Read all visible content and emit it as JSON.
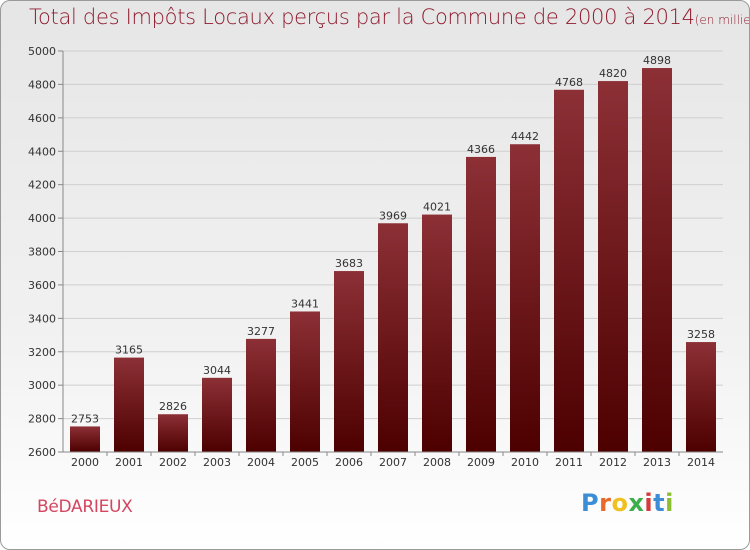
{
  "header": {
    "title": "Total des Impôts Locaux perçus par la Commune de 2000 à 2014",
    "unit": "(en milliers d'€)"
  },
  "commune": "BéDARIEUX",
  "logo": {
    "text": "Proxiti",
    "letters": [
      "P",
      "r",
      "o",
      "x",
      "i",
      "t",
      "i"
    ],
    "colors": [
      "#3b8ed6",
      "#e8692a",
      "#f0c020",
      "#3bb04a",
      "#d43a3a",
      "#3b8ed6",
      "#8bbf2f"
    ]
  },
  "colors": {
    "bar_top": "#8c3036",
    "bar_bottom": "#4d0000",
    "grid": "#cfcfcf",
    "axis": "#888888",
    "label": "#333333"
  },
  "chart_data": {
    "type": "bar",
    "title": "Total des Impôts Locaux perçus par la Commune de 2000 à 2014",
    "xlabel": "",
    "ylabel": "",
    "categories": [
      "2000",
      "2001",
      "2002",
      "2003",
      "2004",
      "2005",
      "2006",
      "2007",
      "2008",
      "2009",
      "2010",
      "2011",
      "2012",
      "2013",
      "2014"
    ],
    "values": [
      2753,
      3165,
      2826,
      3044,
      3277,
      3441,
      3683,
      3969,
      4021,
      4366,
      4442,
      4768,
      4820,
      4898,
      3258
    ],
    "ylim": [
      2600,
      5000
    ],
    "yticks": [
      2600,
      2800,
      3000,
      3200,
      3400,
      3600,
      3800,
      4000,
      4200,
      4400,
      4600,
      4800,
      5000
    ],
    "grid": true
  }
}
